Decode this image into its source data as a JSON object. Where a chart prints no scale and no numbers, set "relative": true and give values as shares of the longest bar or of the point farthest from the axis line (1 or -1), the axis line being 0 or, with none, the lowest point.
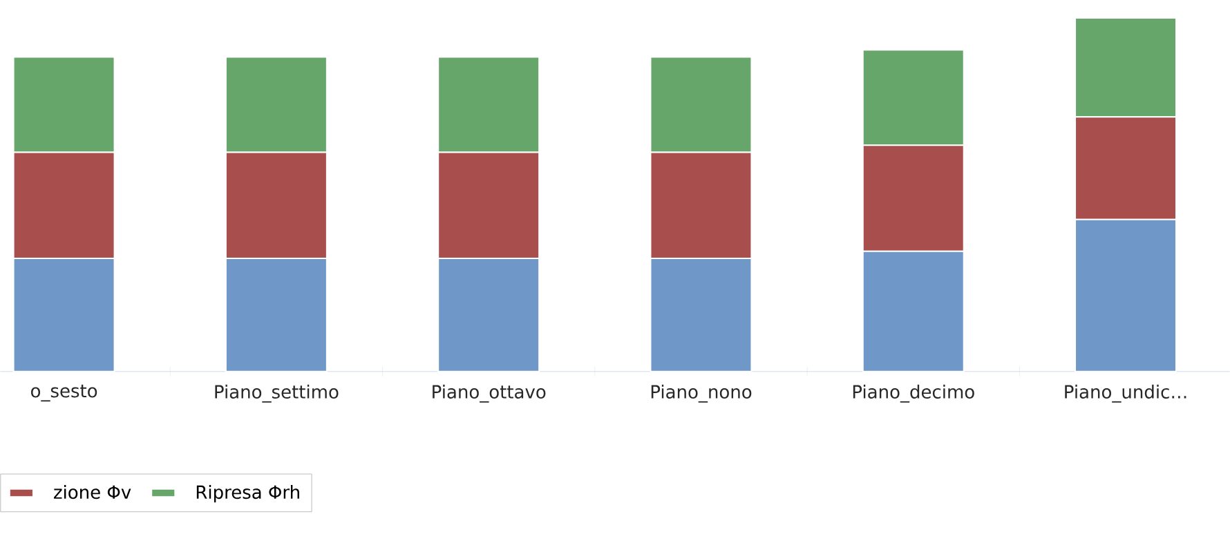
{
  "chart_data": {
    "type": "bar",
    "stacked": true,
    "relative": true,
    "categories": [
      "o_sesto",
      "Piano_settimo",
      "Piano_ottavo",
      "Piano_nono",
      "Piano_decimo",
      "Piano_undic…"
    ],
    "series": [
      {
        "color": "#6f98c9",
        "values": [
          0.32,
          0.32,
          0.32,
          0.32,
          0.34,
          0.43
        ]
      },
      {
        "name": "zione Φv",
        "color": "#a84e4d",
        "values": [
          0.3,
          0.3,
          0.3,
          0.3,
          0.3,
          0.29
        ]
      },
      {
        "name": "Ripresa Φrh",
        "color": "#67a66a",
        "values": [
          0.27,
          0.27,
          0.27,
          0.27,
          0.27,
          0.28
        ]
      }
    ],
    "legend": "bottom left"
  }
}
